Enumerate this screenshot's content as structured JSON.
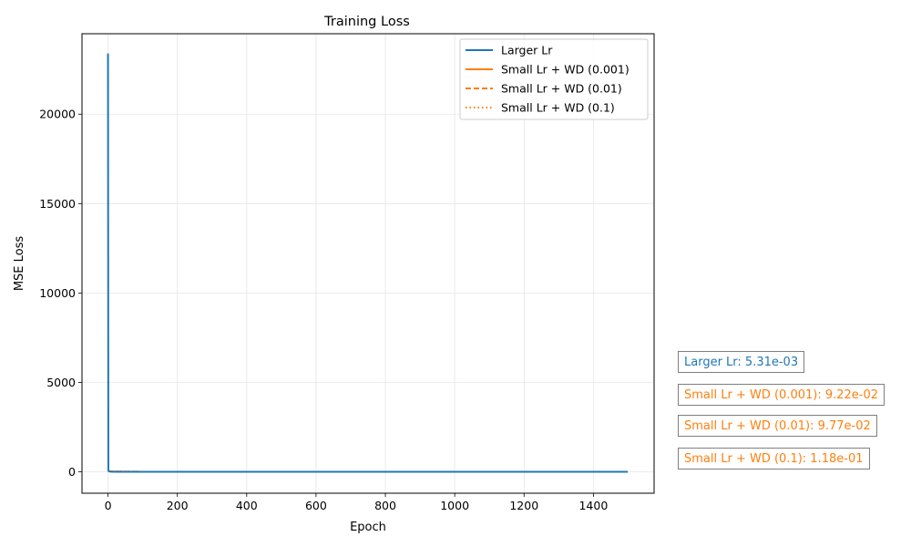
{
  "chart_data": {
    "type": "line",
    "title": "Training Loss",
    "xlabel": "Epoch",
    "ylabel": "MSE Loss",
    "xlim": [
      -75,
      1575
    ],
    "ylim": [
      -1200,
      24500
    ],
    "xticks": [
      0,
      200,
      400,
      600,
      800,
      1000,
      1200,
      1400
    ],
    "yticks": [
      0,
      5000,
      10000,
      15000,
      20000
    ],
    "grid": true,
    "legend_position": "top-right",
    "series": [
      {
        "name": "Larger Lr",
        "color": "#1f77b4",
        "style": "solid",
        "x": [
          0,
          1,
          2,
          5,
          10,
          50,
          100,
          500,
          1000,
          1499
        ],
        "y": [
          23400,
          120,
          40,
          10,
          2,
          0.5,
          0.1,
          0.01,
          0.006,
          0.00531
        ]
      },
      {
        "name": "Small Lr + WD (0.001)",
        "color": "#ff7f0e",
        "style": "solid",
        "x": [
          0,
          10,
          50,
          100,
          500,
          1000,
          1499
        ],
        "y": [
          30,
          15,
          5,
          1,
          0.2,
          0.1,
          0.0922
        ]
      },
      {
        "name": "Small Lr + WD (0.01)",
        "color": "#ff7f0e",
        "style": "dashed",
        "x": [
          0,
          10,
          50,
          100,
          500,
          1000,
          1499
        ],
        "y": [
          30,
          15,
          5,
          1,
          0.2,
          0.1,
          0.0977
        ]
      },
      {
        "name": "Small Lr + WD (0.1)",
        "color": "#ff7f0e",
        "style": "dotted",
        "x": [
          0,
          10,
          50,
          100,
          500,
          1000,
          1499
        ],
        "y": [
          30,
          15,
          5,
          1,
          0.25,
          0.13,
          0.118
        ]
      }
    ],
    "annotations": [
      {
        "text": "Larger Lr: 5.31e-03",
        "color": "#1f77b4"
      },
      {
        "text": "Small Lr + WD (0.001): 9.22e-02",
        "color": "#ff7f0e"
      },
      {
        "text": "Small Lr + WD (0.01): 9.77e-02",
        "color": "#ff7f0e"
      },
      {
        "text": "Small Lr + WD (0.1): 1.18e-01",
        "color": "#ff7f0e"
      }
    ]
  }
}
